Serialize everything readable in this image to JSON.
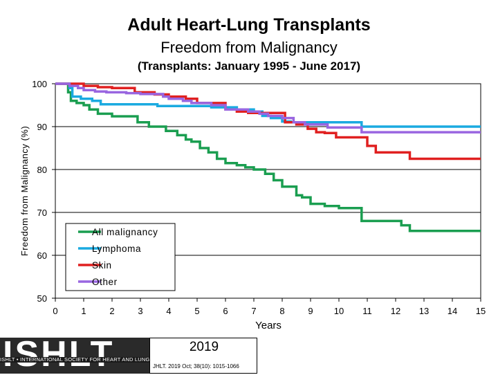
{
  "chart_data": {
    "type": "line",
    "title": "Adult Heart-Lung Transplants",
    "subtitle": "Freedom from Malignancy",
    "subtitle2": "(Transplants: January 1995 - June 2017)",
    "xlabel": "Years",
    "ylabel": "Freedom from Malignancy (%)",
    "xlim": [
      0,
      15
    ],
    "ylim": [
      50,
      100
    ],
    "xticks": [
      "0",
      "1",
      "2",
      "3",
      "4",
      "5",
      "6",
      "7",
      "8",
      "9",
      "10",
      "11",
      "12",
      "13",
      "14",
      "15"
    ],
    "yticks": [
      "50",
      "60",
      "70",
      "80",
      "90",
      "100"
    ],
    "grid": "horizontal",
    "legend_position": "bottom-left",
    "series": [
      {
        "name": "All malignancy",
        "color": "#1a9e50",
        "x": [
          0,
          0.45,
          0.55,
          0.75,
          1.0,
          1.2,
          1.5,
          2.0,
          2.7,
          2.9,
          3.3,
          3.6,
          3.9,
          4.3,
          4.6,
          4.8,
          5.1,
          5.4,
          5.7,
          6.0,
          6.4,
          6.7,
          7.0,
          7.4,
          7.7,
          8.0,
          8.5,
          8.7,
          9.0,
          9.5,
          10.0,
          10.6,
          10.8,
          11.0,
          11.2,
          12.2,
          12.5,
          15.0
        ],
        "y": [
          100,
          98,
          96,
          95.5,
          95,
          94,
          93,
          92.4,
          92.4,
          91,
          90,
          90,
          89,
          88,
          87,
          86.5,
          85,
          84,
          82.5,
          81.5,
          81,
          80.5,
          80,
          79,
          77.5,
          76,
          74,
          73.5,
          72,
          71.5,
          71,
          71,
          68,
          68,
          68,
          67,
          65.7,
          65.7
        ]
      },
      {
        "name": "Lymphoma",
        "color": "#1aaae0",
        "x": [
          0,
          0.5,
          0.6,
          0.9,
          1.3,
          1.6,
          2.8,
          3.6,
          4.0,
          5.5,
          6.4,
          7.0,
          7.3,
          7.6,
          8.0,
          8.3,
          10.8,
          15.0
        ],
        "y": [
          100,
          99,
          97,
          96.5,
          96,
          95.2,
          95.2,
          94.8,
          94.8,
          94.5,
          94,
          93.5,
          92.5,
          92,
          91.2,
          91,
          90,
          90
        ]
      },
      {
        "name": "Skin",
        "color": "#e02020",
        "x": [
          0,
          1.0,
          1.5,
          2.0,
          2.8,
          3.5,
          4.0,
          4.6,
          5.0,
          6.0,
          6.4,
          6.8,
          7.3,
          7.9,
          8.1,
          8.5,
          8.9,
          9.2,
          9.5,
          9.9,
          10.7,
          11.0,
          11.3,
          12.5,
          15.0
        ],
        "y": [
          100,
          99.5,
          99.2,
          99,
          98,
          97.5,
          97,
          96.5,
          95.5,
          94,
          93.5,
          93.2,
          93.2,
          93.2,
          91,
          90.5,
          89.5,
          88.7,
          88.5,
          87.5,
          87.5,
          85.5,
          84,
          82.5,
          82.5
        ]
      },
      {
        "name": "Other",
        "color": "#9966e0",
        "x": [
          0,
          0.5,
          0.8,
          1.0,
          1.4,
          1.8,
          2.5,
          3.0,
          3.8,
          4.0,
          4.5,
          4.8,
          5.5,
          6.0,
          6.8,
          7.2,
          7.5,
          8.0,
          8.4,
          8.8,
          9.6,
          10.8,
          15.0
        ],
        "y": [
          100,
          99.5,
          99,
          98.5,
          98.2,
          98,
          97.8,
          97.6,
          97,
          96.5,
          96,
          95.5,
          95,
          94,
          93.5,
          93,
          92.5,
          92,
          91,
          90.5,
          89.8,
          88.7,
          88.7
        ]
      }
    ]
  },
  "footer": {
    "logo_text": "ISHLT",
    "logo_strip": "ISHLT • INTERNATIONAL SOCIETY FOR HEART AND LUNG TRANSPLANTATION",
    "year": "2019",
    "citation": "JHLT. 2019 Oct; 38(10): 1015-1066"
  }
}
